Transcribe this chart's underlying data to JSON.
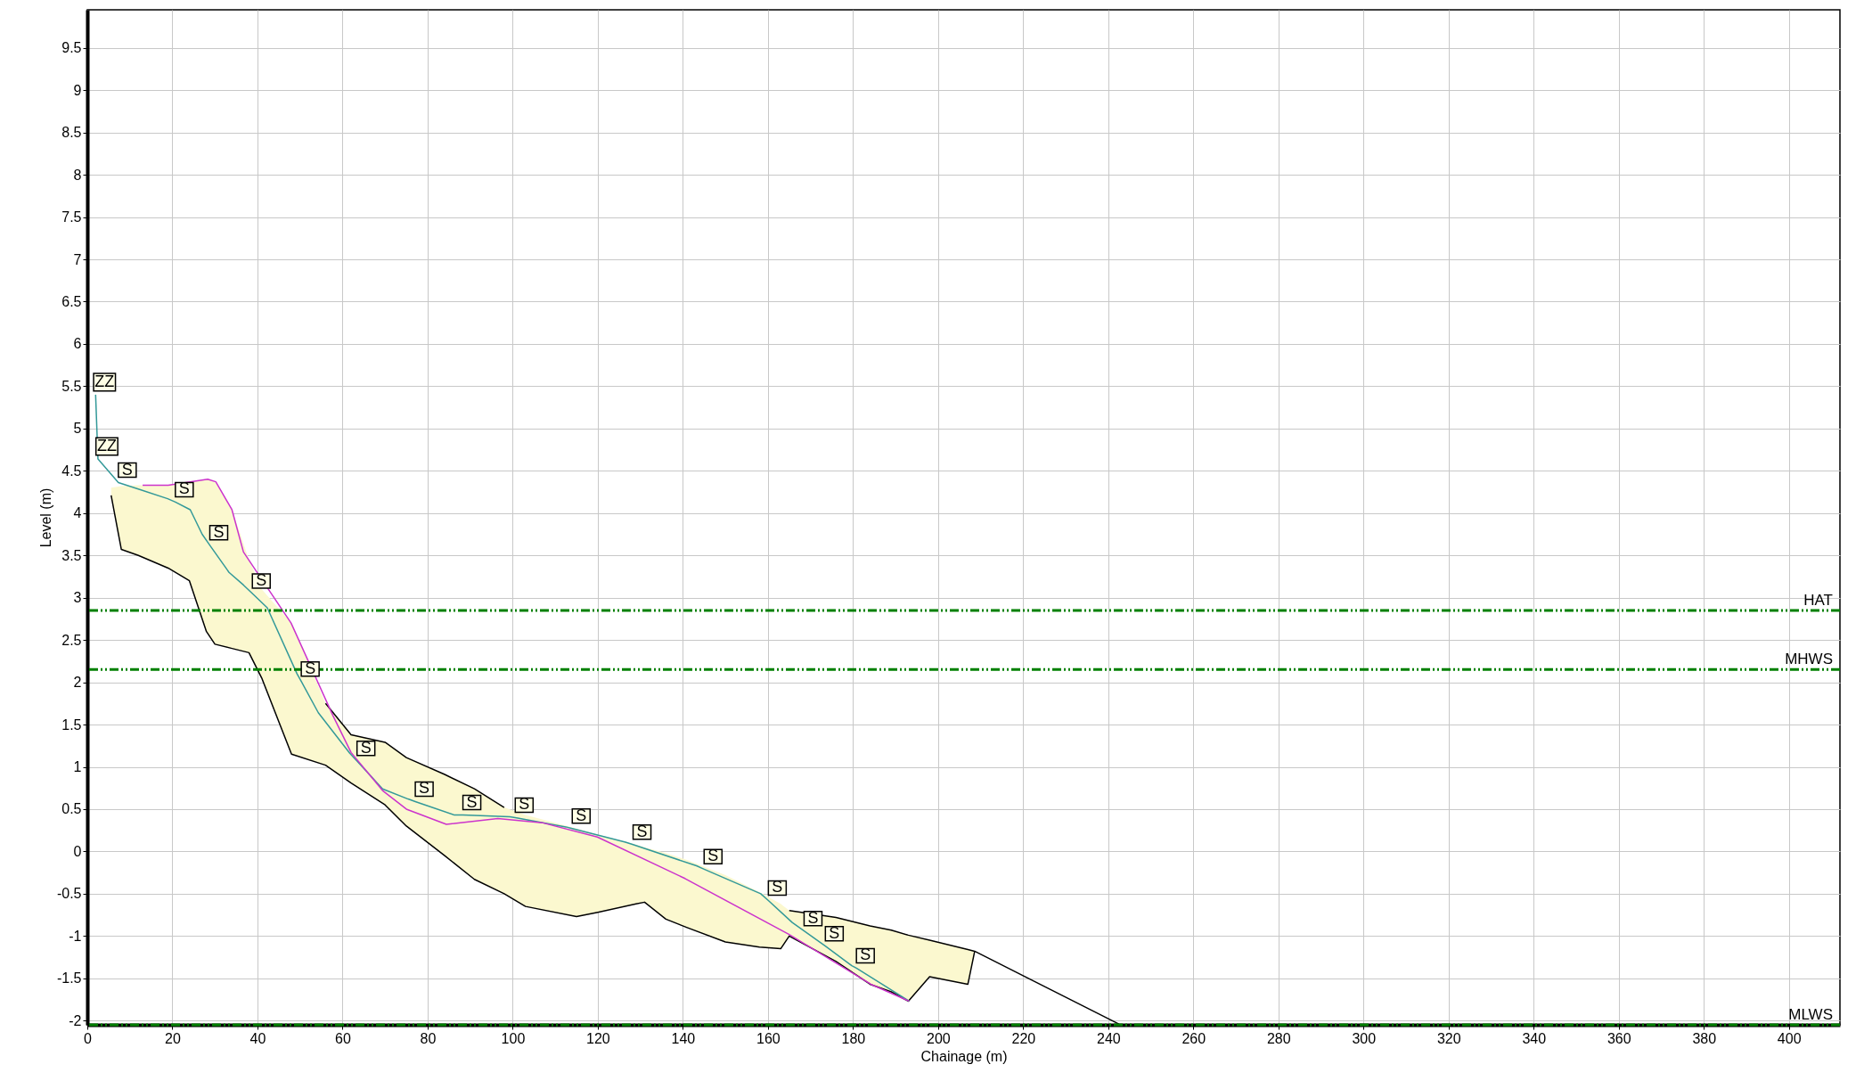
{
  "chart_data": {
    "type": "line",
    "xlabel": "Chainage (m)",
    "ylabel": "Level (m)",
    "xlim": [
      0,
      412
    ],
    "ylim": [
      -2.05,
      9.95
    ],
    "xticks": [
      0,
      20,
      40,
      60,
      80,
      100,
      120,
      140,
      160,
      180,
      200,
      220,
      240,
      260,
      280,
      300,
      320,
      340,
      360,
      380,
      400
    ],
    "yticks": [
      -2,
      -1.5,
      -1,
      -0.5,
      0,
      0.5,
      1,
      1.5,
      2,
      2.5,
      3,
      3.5,
      4,
      4.5,
      5,
      5.5,
      6,
      6.5,
      7,
      7.5,
      8,
      8.5,
      9,
      9.5
    ],
    "grid": true,
    "marker": "none",
    "series": [
      {
        "color": "#000000",
        "x": [
          5.6,
          8,
          12,
          19,
          24,
          28,
          30,
          34,
          38,
          41,
          48,
          56,
          62,
          70,
          75,
          84,
          91,
          98,
          103,
          115,
          120,
          129,
          131,
          136,
          141,
          150,
          158,
          163,
          165,
          176,
          184,
          189,
          193,
          198,
          207,
          208.6
        ],
        "values": [
          4.21,
          3.57,
          3.5,
          3.35,
          3.2,
          2.6,
          2.45,
          2.4,
          2.35,
          2.05,
          1.15,
          1.02,
          0.81,
          0.55,
          0.3,
          -0.05,
          -0.33,
          -0.5,
          -0.65,
          -0.77,
          -0.72,
          -0.62,
          -0.6,
          -0.8,
          -0.9,
          -1.07,
          -1.13,
          -1.15,
          -1.0,
          -1.3,
          -1.57,
          -1.66,
          -1.77,
          -1.48,
          -1.57,
          -1.18
        ],
        "lower": [
          4.21,
          3.57,
          3.5,
          3.35,
          3.2,
          2.6,
          2.45,
          2.4,
          2.35,
          2.05,
          1.15,
          1.02,
          0.81,
          0.55,
          0.3,
          -0.05,
          -0.33,
          -0.5,
          -0.65,
          -0.77,
          -0.72,
          -0.62,
          -0.6,
          -0.8,
          -0.9,
          -1.07,
          -1.13,
          -1.15,
          -1.0,
          -1.3,
          -1.57,
          -1.66,
          -1.77,
          -1.48,
          -1.57,
          -1.18
        ],
        "upper": [
          4.3,
          4.32,
          4.33,
          4.33,
          4.36,
          4.4,
          4.37,
          4.04,
          3.45,
          3.1,
          2.7,
          1.75,
          1.38,
          1.29,
          1.11,
          0.91,
          0.74,
          0.52,
          0.43,
          0.27,
          0.2,
          0.08,
          0.05,
          -0.02,
          -0.1,
          -0.28,
          -0.48,
          -0.62,
          -0.7,
          -0.78,
          -0.88,
          -0.93,
          -0.99,
          -1.05,
          -1.16,
          -1.18
        ]
      },
      {
        "color": "#000000",
        "x": [
          56,
          62,
          70,
          75,
          84,
          91,
          98
        ],
        "values": [
          1.75,
          1.38,
          1.29,
          1.11,
          0.91,
          0.74,
          0.52
        ]
      },
      {
        "color": "#000000",
        "x": [
          165,
          176,
          184,
          189,
          193,
          198,
          207,
          208.6,
          220.4,
          242.5
        ],
        "values": [
          -0.7,
          -0.78,
          -0.88,
          -0.93,
          -0.99,
          -1.05,
          -1.16,
          -1.18,
          -1.48,
          -2.04
        ]
      },
      {
        "color": "#339999",
        "x": [
          1.95,
          2.5,
          7.3,
          12.3,
          18.9,
          20.7,
          24.2,
          27,
          28.8,
          33.3,
          36.7,
          38.8,
          42.3,
          49.3,
          50.3,
          54.3,
          61.7,
          63.4,
          69.4,
          75.4,
          77.1,
          86.3,
          88.3,
          99.3,
          100.6,
          112.5,
          114,
          126.5,
          128.3,
          143.2,
          145,
          158.3,
          160.1,
          165.7,
          168.5,
          173.5,
          179.7,
          180.8,
          193.2
        ],
        "values": [
          5.4,
          4.64,
          4.36,
          4.28,
          4.17,
          4.13,
          4.04,
          3.75,
          3.62,
          3.3,
          3.15,
          3.05,
          2.88,
          2.1,
          2.01,
          1.64,
          1.16,
          1.07,
          0.74,
          0.62,
          0.59,
          0.43,
          0.43,
          0.41,
          0.4,
          0.29,
          0.27,
          0.11,
          0.08,
          -0.17,
          -0.21,
          -0.5,
          -0.58,
          -0.84,
          -0.94,
          -1.12,
          -1.35,
          -1.38,
          -1.77
        ]
      },
      {
        "color": "#cc33cc",
        "x": [
          13,
          19,
          28.3,
          30.2,
          34,
          36.7,
          39.5,
          47.9,
          57.7,
          62,
          69.4,
          75,
          84.4,
          96.5,
          106.9,
          119.9,
          140.5,
          164.9,
          184.2,
          193.2
        ],
        "values": [
          4.33,
          4.33,
          4.4,
          4.37,
          4.04,
          3.54,
          3.33,
          2.7,
          1.61,
          1.17,
          0.72,
          0.5,
          0.32,
          0.39,
          0.34,
          0.17,
          -0.32,
          -0.98,
          -1.57,
          -1.77
        ]
      }
    ],
    "ref_lines": [
      {
        "axis": "y",
        "value": 2.85,
        "label": "HAT",
        "color": "#008000",
        "line_style": "dashdot"
      },
      {
        "axis": "y",
        "value": 2.15,
        "label": "MHWS",
        "color": "#008000",
        "line_style": "dashdot"
      },
      {
        "axis": "y",
        "value": -2.05,
        "label": "MLWS",
        "color": "#008000",
        "line_style": "dashdot"
      }
    ],
    "annotations": [
      {
        "text": "ZZ",
        "x": 1.95,
        "y": 5.4
      },
      {
        "text": "ZZ",
        "x": 2.5,
        "y": 4.64
      },
      {
        "text": "S",
        "x": 7.3,
        "y": 4.36
      },
      {
        "text": "S",
        "x": 20.7,
        "y": 4.13
      },
      {
        "text": "S",
        "x": 28.8,
        "y": 3.62
      },
      {
        "text": "S",
        "x": 38.8,
        "y": 3.05
      },
      {
        "text": "S",
        "x": 50.3,
        "y": 2.01
      },
      {
        "text": "S",
        "x": 63.4,
        "y": 1.07
      },
      {
        "text": "S",
        "x": 77.1,
        "y": 0.59
      },
      {
        "text": "S",
        "x": 88.3,
        "y": 0.43
      },
      {
        "text": "S",
        "x": 100.6,
        "y": 0.4
      },
      {
        "text": "S",
        "x": 114,
        "y": 0.27
      },
      {
        "text": "S",
        "x": 128.3,
        "y": 0.08
      },
      {
        "text": "S",
        "x": 145,
        "y": -0.21
      },
      {
        "text": "S",
        "x": 160.1,
        "y": -0.58
      },
      {
        "text": "S",
        "x": 168.5,
        "y": -0.94
      },
      {
        "text": "S",
        "x": 173.5,
        "y": -1.12
      },
      {
        "text": "S",
        "x": 180.8,
        "y": -1.38
      }
    ]
  }
}
